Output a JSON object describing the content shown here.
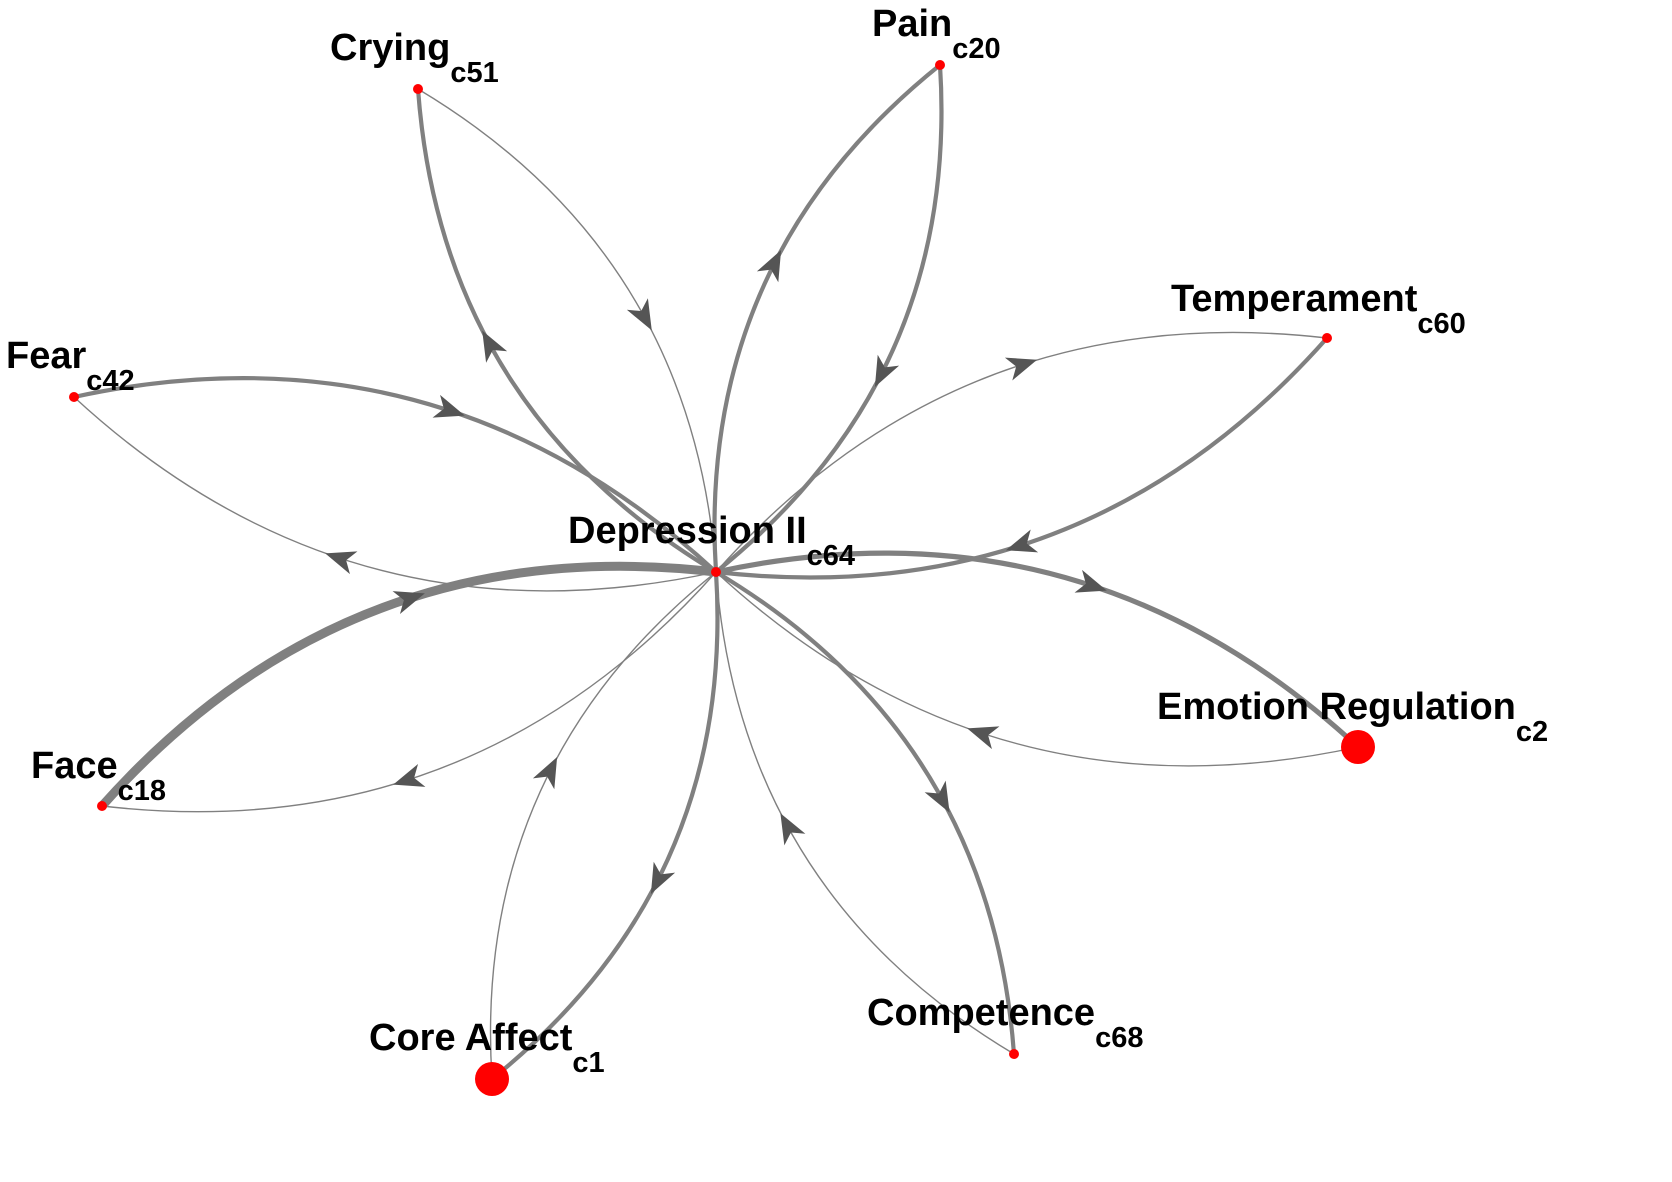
{
  "center": {
    "id": "c64",
    "name": "Depression II",
    "subscript": "c64"
  },
  "nodes": [
    {
      "id": "c51",
      "name": "Crying",
      "subscript": "c51",
      "size": "small"
    },
    {
      "id": "c20",
      "name": "Pain",
      "subscript": "c20",
      "size": "small"
    },
    {
      "id": "c60",
      "name": "Temperament",
      "subscript": "c60",
      "size": "small"
    },
    {
      "id": "c42",
      "name": "Fear",
      "subscript": "c42",
      "size": "small"
    },
    {
      "id": "c2",
      "name": "Emotion Regulation",
      "subscript": "c2",
      "size": "large"
    },
    {
      "id": "c18",
      "name": "Face",
      "subscript": "c18",
      "size": "small"
    },
    {
      "id": "c68",
      "name": "Competence",
      "subscript": "c68",
      "size": "small"
    },
    {
      "id": "c1",
      "name": "Core Affect",
      "subscript": "c1",
      "size": "large"
    }
  ],
  "edges": [
    {
      "from": "c51",
      "to": "c64",
      "weight": "thin"
    },
    {
      "from": "c64",
      "to": "c51",
      "weight": "medium"
    },
    {
      "from": "c20",
      "to": "c64",
      "weight": "medium"
    },
    {
      "from": "c64",
      "to": "c20",
      "weight": "medium"
    },
    {
      "from": "c60",
      "to": "c64",
      "weight": "medium"
    },
    {
      "from": "c64",
      "to": "c60",
      "weight": "thin"
    },
    {
      "from": "c64",
      "to": "c42",
      "weight": "thin"
    },
    {
      "from": "c42",
      "to": "c64",
      "weight": "medium"
    },
    {
      "from": "c2",
      "to": "c64",
      "weight": "thin"
    },
    {
      "from": "c64",
      "to": "c2",
      "weight": "thick"
    },
    {
      "from": "c64",
      "to": "c18",
      "weight": "thin"
    },
    {
      "from": "c18",
      "to": "c64",
      "weight": "heavy"
    },
    {
      "from": "c68",
      "to": "c64",
      "weight": "thin"
    },
    {
      "from": "c64",
      "to": "c68",
      "weight": "medium"
    },
    {
      "from": "c64",
      "to": "c1",
      "weight": "medium"
    },
    {
      "from": "c1",
      "to": "c64",
      "weight": "thin"
    }
  ],
  "colors": {
    "node": "#ff0000",
    "edge": "#808080",
    "arrow": "#555555",
    "text": "#000000"
  }
}
